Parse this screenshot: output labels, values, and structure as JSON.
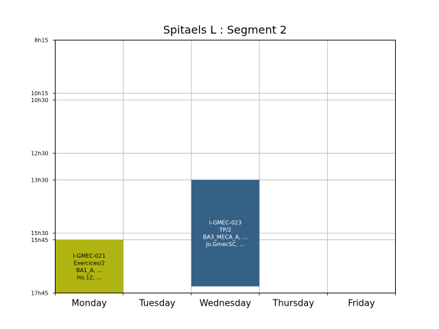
{
  "chart_data": {
    "type": "timetable",
    "title": "Spitaels L : Segment 2",
    "days": [
      "Monday",
      "Tuesday",
      "Wednesday",
      "Thursday",
      "Friday"
    ],
    "y_range": [
      "8h15",
      "17h45"
    ],
    "y_ticks": [
      "8h15",
      "10h15",
      "10h30",
      "12h30",
      "13h30",
      "15h30",
      "15h45",
      "17h45"
    ],
    "grid": true,
    "events": [
      {
        "day": "Monday",
        "start": "15h45",
        "end": "17h45",
        "color": "#b0b412",
        "text_color": "#000000",
        "lines": [
          "I-GMEC-021",
          "Exercices/2",
          "BA1_A, ...",
          "Ho.12, ..."
        ]
      },
      {
        "day": "Wednesday",
        "start": "13h30",
        "end": "17h30",
        "color": "#356187",
        "text_color": "#ffffff",
        "lines": [
          "I-GMEC-023",
          "TP/2",
          "BA3_MECA_A, ...",
          "Jo.GmecSC, ..."
        ]
      }
    ]
  }
}
